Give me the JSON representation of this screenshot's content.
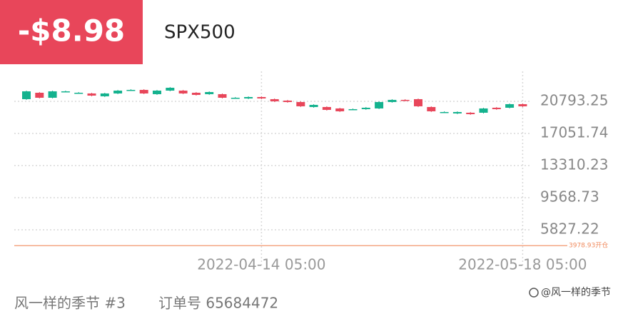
{
  "header": {
    "pnl": "-$8.98",
    "symbol": "SPX500"
  },
  "chart_data": {
    "type": "candlestick",
    "categories": [
      null,
      null,
      null,
      null,
      null,
      null,
      null,
      null,
      null,
      null,
      null,
      null,
      null,
      null,
      null,
      null,
      null,
      null,
      "2022-04-14 05:00",
      null,
      null,
      null,
      null,
      null,
      null,
      null,
      null,
      null,
      null,
      null,
      null,
      null,
      null,
      null,
      null,
      null,
      null,
      null,
      "2022-05-18 05:00"
    ],
    "open": [
      21043,
      21791,
      21209,
      21957,
      21791,
      21708,
      21375,
      21708,
      22123,
      22123,
      21625,
      22040,
      22040,
      21791,
      21625,
      21625,
      21209,
      21126,
      21292,
      21043,
      20876,
      20710,
      20128,
      20128,
      19962,
      19879,
      19879,
      19962,
      20710,
      20960,
      21043,
      20128,
      19546,
      19380,
      19463,
      19463,
      20045,
      20045,
      20461
    ],
    "close": [
      21957,
      21209,
      21957,
      21957,
      21791,
      21458,
      21708,
      22040,
      22123,
      21708,
      22040,
      22373,
      21708,
      21541,
      21874,
      21209,
      21209,
      21292,
      21126,
      20793,
      20710,
      20211,
      20378,
      19796,
      19629,
      19879,
      20045,
      20710,
      20960,
      20876,
      20211,
      19629,
      19546,
      19546,
      19297,
      19962,
      19879,
      20461,
      20211
    ],
    "high": [
      22040,
      21874,
      22040,
      22040,
      21874,
      21791,
      21791,
      22123,
      22206,
      22206,
      22123,
      22456,
      22123,
      21874,
      21957,
      21708,
      21292,
      21375,
      21375,
      21126,
      20960,
      20793,
      20461,
      20211,
      20045,
      19962,
      20128,
      20793,
      21043,
      21043,
      21126,
      20211,
      19629,
      19629,
      19546,
      20045,
      20128,
      20544,
      20544
    ],
    "low": [
      20960,
      21126,
      21126,
      21874,
      21708,
      21375,
      21292,
      21625,
      22040,
      21625,
      21541,
      21957,
      21625,
      21458,
      21541,
      21126,
      21126,
      21043,
      21043,
      20710,
      20627,
      20128,
      20045,
      19713,
      19546,
      19796,
      19796,
      19879,
      20627,
      20793,
      20128,
      19546,
      19463,
      19297,
      19214,
      19380,
      19796,
      19962,
      20128
    ],
    "up_color": "#14b28e",
    "down_color": "#e8465a",
    "ylim": [
      2000,
      24000
    ],
    "yticks": [
      5827.22,
      9568.73,
      13310.23,
      17051.74,
      20793.25
    ],
    "grid": true,
    "open_line": {
      "value": 3978.93,
      "label": "3978.93开仓",
      "color": "#f08a5d"
    }
  },
  "footer": {
    "user": "风一样的季节 #3",
    "order": "订单号 65684472",
    "watermark": "@风一样的季节"
  }
}
